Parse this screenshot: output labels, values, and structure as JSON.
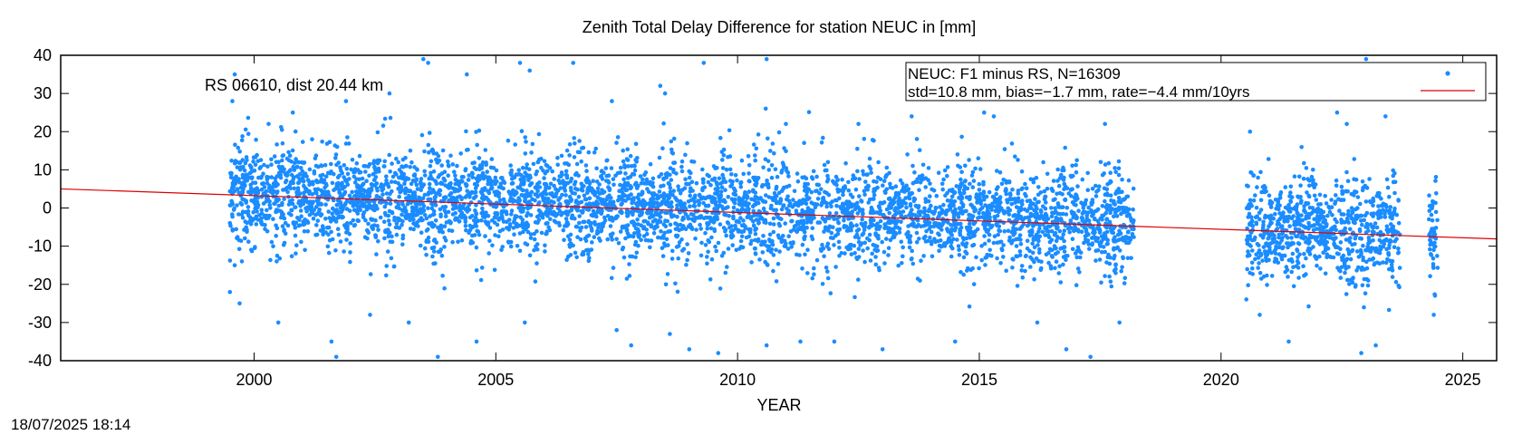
{
  "chart_data": {
    "type": "scatter",
    "title": "Zenith Total Delay Difference for station NEUC in [mm]",
    "xlabel": "YEAR",
    "ylabel": "",
    "xlim": [
      1996,
      2025.7
    ],
    "ylim": [
      -40,
      40
    ],
    "x_ticks": [
      2000,
      2005,
      2010,
      2015,
      2020,
      2025
    ],
    "y_ticks": [
      40,
      30,
      20,
      10,
      0,
      -10,
      -20,
      -30,
      -40
    ],
    "grid": false,
    "legend_position": "top-right",
    "annotation": "RS 06610, dist 20.44 km",
    "legend": {
      "line1": "NEUC: F1 minus RS, N=16309",
      "line2": "std=10.8 mm, bias=−1.7 mm, rate=−4.4 mm/10yrs"
    },
    "series": [
      {
        "type": "scatter",
        "color": "#1a8cff",
        "n": 16309,
        "std": 10.8,
        "bias": -1.7,
        "rate_per_10yrs": -4.4,
        "coverage": [
          [
            1999.5,
            2018.2
          ],
          [
            2020.5,
            2023.7
          ],
          [
            2024.3,
            2024.5
          ]
        ],
        "points": [
          [
            1999.5,
            -22
          ],
          [
            1999.55,
            28
          ],
          [
            1999.6,
            35
          ],
          [
            1999.6,
            -15
          ],
          [
            1999.65,
            12
          ],
          [
            1999.7,
            -25
          ],
          [
            2000.3,
            22
          ],
          [
            2000.5,
            -30
          ],
          [
            2000.8,
            25
          ],
          [
            2001.2,
            18
          ],
          [
            2001.6,
            -35
          ],
          [
            2001.7,
            -39
          ],
          [
            2001.9,
            28
          ],
          [
            2002.4,
            -28
          ],
          [
            2002.8,
            30
          ],
          [
            2003.2,
            -30
          ],
          [
            2003.5,
            39
          ],
          [
            2003.6,
            38
          ],
          [
            2003.8,
            -39
          ],
          [
            2004.4,
            35
          ],
          [
            2004.6,
            -35
          ],
          [
            2005.5,
            38
          ],
          [
            2005.7,
            36
          ],
          [
            2005.6,
            -30
          ],
          [
            2006.6,
            38
          ],
          [
            2007.4,
            28
          ],
          [
            2007.5,
            -32
          ],
          [
            2007.8,
            -36
          ],
          [
            2008.4,
            32
          ],
          [
            2008.5,
            30
          ],
          [
            2008.6,
            -33
          ],
          [
            2009.0,
            -37
          ],
          [
            2009.3,
            38
          ],
          [
            2009.6,
            -38
          ],
          [
            2010.6,
            39
          ],
          [
            2010.6,
            -36
          ],
          [
            2011.0,
            22
          ],
          [
            2011.3,
            -35
          ],
          [
            2012.0,
            -35
          ],
          [
            2012.5,
            22
          ],
          [
            2013.0,
            -37
          ],
          [
            2013.6,
            24
          ],
          [
            2014.5,
            -35
          ],
          [
            2015.1,
            25
          ],
          [
            2015.3,
            24
          ],
          [
            2016.2,
            -30
          ],
          [
            2016.8,
            -37
          ],
          [
            2017.3,
            -39
          ],
          [
            2017.6,
            22
          ],
          [
            2017.9,
            -30
          ],
          [
            2020.6,
            20
          ],
          [
            2020.8,
            -28
          ],
          [
            2021.4,
            -35
          ],
          [
            2022.4,
            25
          ],
          [
            2022.6,
            22
          ],
          [
            2022.9,
            -38
          ],
          [
            2023.0,
            39
          ],
          [
            2023.2,
            -36
          ],
          [
            2023.4,
            24
          ],
          [
            2024.4,
            -28
          ]
        ]
      },
      {
        "type": "line",
        "color": "#dd0000",
        "x": [
          1996,
          2025.7
        ],
        "y": [
          5.0,
          -8.1
        ]
      }
    ]
  },
  "timestamp": "18/07/2025 18:14"
}
